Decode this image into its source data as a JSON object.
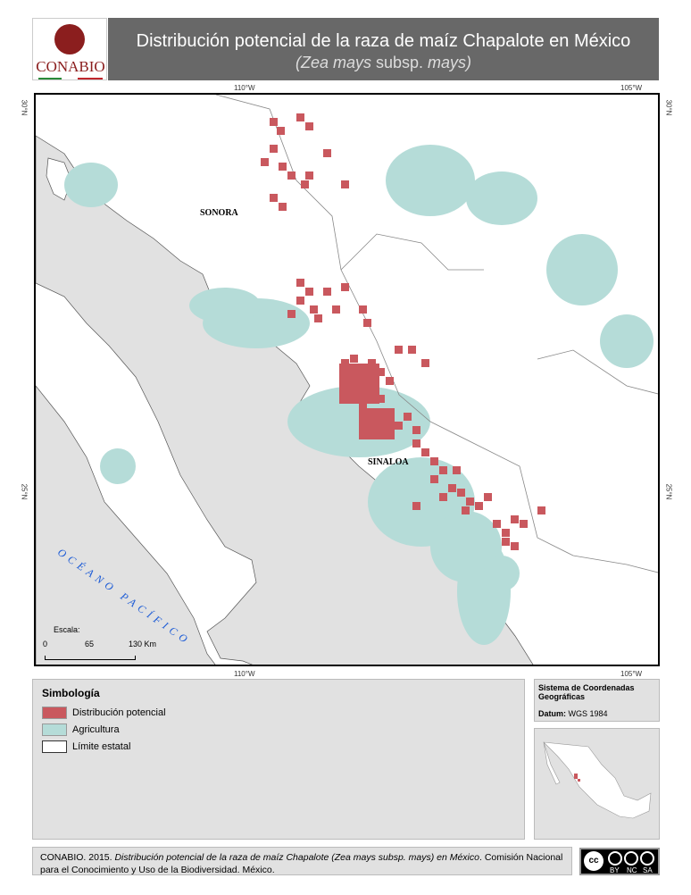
{
  "logo": {
    "text": "CONABIO"
  },
  "header": {
    "title": "Distribución potencial de la raza de maíz Chapalote en México",
    "subtitle_italic1": "(Zea mays",
    "subtitle_plain": " subsp. ",
    "subtitle_italic2": "mays)"
  },
  "graticule": {
    "lon_110": "110°W",
    "lon_105": "105°W",
    "lat_30": "30°N",
    "lat_25": "25°N"
  },
  "map": {
    "labels": {
      "sonora": "SONORA",
      "sinaloa": "SINALOA",
      "ocean": "OCÉANO PACÍFICO"
    },
    "colors": {
      "land": "#ffffff",
      "sea": "#e1e1e1",
      "distribution": "#c9585e",
      "agriculture": "#b5dcd8"
    }
  },
  "scale": {
    "title": "Escala:",
    "t0": "0",
    "t1": "65",
    "t2": "130 Km"
  },
  "legend": {
    "title": "Simbología",
    "items": [
      {
        "label": "Distribución potencial",
        "color": "#c9585e"
      },
      {
        "label": "Agricultura",
        "color": "#b5dcd8"
      },
      {
        "label": "Límite estatal",
        "color": "#ffffff"
      }
    ]
  },
  "coords": {
    "system": "Sistema de Coordenadas Geográficas",
    "datum_label": "Datum:",
    "datum_value": "WGS 1984"
  },
  "footer": {
    "a": "CONABIO. 2015. ",
    "b": "Distribución potencial de la raza de maíz Chapalote (Zea mays subsp. mays) en México",
    "c": ". Comisión Nacional para el Conocimiento y Uso de la Biodiversidad. México."
  },
  "license": {
    "cc": "cc",
    "by": "BY",
    "nc": "NC",
    "sa": "SA"
  }
}
